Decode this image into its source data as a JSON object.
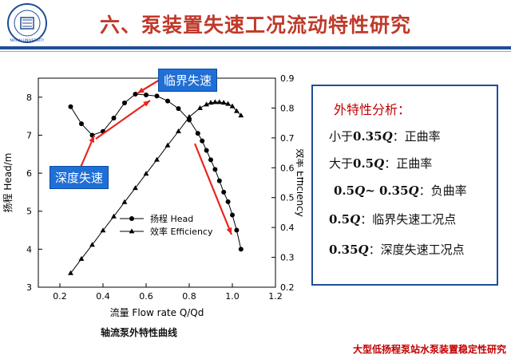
{
  "slide": {
    "title": "六、泵装置失速工况流动特性研究",
    "footer": "大型低扬程泵站水泵装置稳定性研究",
    "logo_text": "NOHAI UNIVERSITY"
  },
  "annotations": {
    "critical_stall": "临界失速",
    "deep_stall": "深度失速"
  },
  "caption": "轴流泵外特性曲线",
  "info": {
    "title": "外特性分析：",
    "lines": [
      {
        "pre": "小于",
        "val": "0.35",
        "q": "Q",
        "post": "：正曲率"
      },
      {
        "pre": "大于",
        "val": "0.5",
        "q": "Q",
        "post": "：正曲率"
      },
      {
        "pre": "",
        "val": "0.5",
        "q": "Q",
        "mid": "~ 0.35",
        "q2": "Q",
        "post": "：负曲率"
      },
      {
        "pre": "",
        "val": "0.5",
        "q": "Q",
        "post": "：临界失速工况点"
      },
      {
        "pre": "",
        "val": "0.35",
        "q": "Q",
        "post": "：深度失速工况点"
      }
    ]
  },
  "chart_data": {
    "type": "line",
    "xlabel": "流量 Flow rate Q/Qd",
    "ylabel_left": "扬程 Head/m",
    "ylabel_right": "效率 Efficiency",
    "xlim": [
      0.1,
      1.2
    ],
    "xticks": [
      0.2,
      0.4,
      0.6,
      0.8,
      1.0,
      1.2
    ],
    "ylim_left": [
      3,
      8.5
    ],
    "yticks_left": [
      3,
      4,
      5,
      6,
      7,
      8
    ],
    "ylim_right": [
      0.2,
      0.9
    ],
    "yticks_right": [
      0.2,
      0.3,
      0.4,
      0.5,
      0.6,
      0.7,
      0.8,
      0.9
    ],
    "legend_position": "center",
    "grid": false,
    "series": [
      {
        "name": "扬程 Head",
        "axis": "left",
        "marker": "circle",
        "x": [
          0.25,
          0.3,
          0.35,
          0.4,
          0.45,
          0.5,
          0.55,
          0.6,
          0.65,
          0.7,
          0.75,
          0.8,
          0.84,
          0.86,
          0.88,
          0.9,
          0.92,
          0.94,
          0.96,
          0.98,
          1.0,
          1.02,
          1.04
        ],
        "values": [
          7.75,
          7.3,
          7.0,
          7.1,
          7.45,
          7.85,
          8.08,
          8.06,
          8.03,
          7.9,
          7.7,
          7.4,
          7.05,
          6.85,
          6.6,
          6.35,
          6.1,
          5.8,
          5.5,
          5.25,
          4.9,
          4.5,
          4.0
        ]
      },
      {
        "name": "效率 Efficiency",
        "axis": "right",
        "marker": "triangle",
        "x": [
          0.25,
          0.3,
          0.35,
          0.4,
          0.45,
          0.5,
          0.55,
          0.6,
          0.65,
          0.7,
          0.75,
          0.8,
          0.85,
          0.88,
          0.9,
          0.92,
          0.94,
          0.96,
          0.98,
          1.0,
          1.02,
          1.04
        ],
        "values": [
          0.247,
          0.295,
          0.342,
          0.39,
          0.437,
          0.485,
          0.532,
          0.58,
          0.627,
          0.675,
          0.722,
          0.77,
          0.8,
          0.812,
          0.818,
          0.82,
          0.82,
          0.818,
          0.814,
          0.806,
          0.79,
          0.775
        ]
      }
    ]
  },
  "colors": {
    "title": "#c0392b",
    "accent_blue": "#1f4e96",
    "annotation_bg": "#1f6fd6",
    "arrow_red": "#e8261f"
  }
}
